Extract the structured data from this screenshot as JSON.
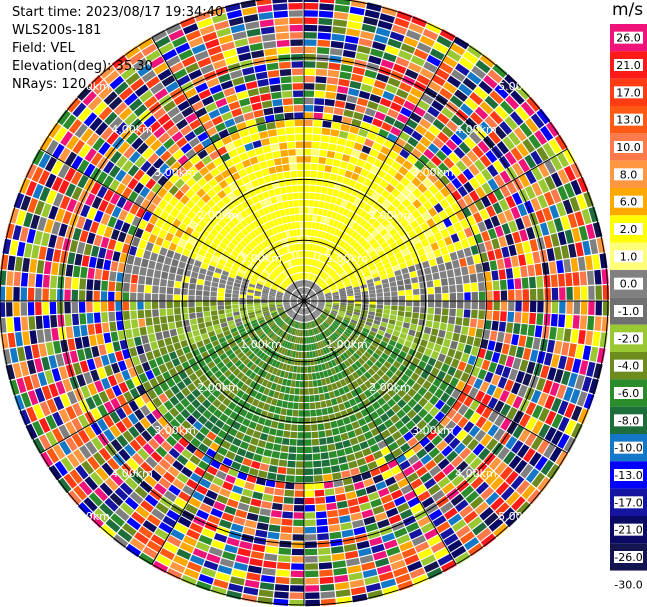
{
  "header": {
    "start_time": "Start time: 2023/08/17 19:34:40",
    "instrument": "WLS200s-181",
    "field": "Field: VEL",
    "elevation": "Elevation(deg): 35.30",
    "nrays": "NRays: 120"
  },
  "colorbar": {
    "unit": "m/s",
    "bins": [
      {
        "label": "26.0",
        "color": "#f0147a"
      },
      {
        "label": "21.0",
        "color": "#ff1a1a"
      },
      {
        "label": "17.0",
        "color": "#ff3c14"
      },
      {
        "label": "13.0",
        "color": "#ff5a14"
      },
      {
        "label": "10.0",
        "color": "#ff7a4a"
      },
      {
        "label": "8.0",
        "color": "#ff9640"
      },
      {
        "label": "6.0",
        "color": "#ffa800"
      },
      {
        "label": "2.0",
        "color": "#ffff00"
      },
      {
        "label": "1.0",
        "color": "#ffff7a"
      },
      {
        "label": "0.0",
        "color": "#808080"
      },
      {
        "label": "-1.0",
        "color": "#707070"
      },
      {
        "label": "-2.0",
        "color": "#9ac832"
      },
      {
        "label": "-4.0",
        "color": "#6e8c1e"
      },
      {
        "label": "-6.0",
        "color": "#2a8c2a"
      },
      {
        "label": "-8.0",
        "color": "#1e6e3c"
      },
      {
        "label": "-10.0",
        "color": "#1478c8"
      },
      {
        "label": "-13.0",
        "color": "#0000ff"
      },
      {
        "label": "-17.0",
        "color": "#1414a0"
      },
      {
        "label": "-21.0",
        "color": "#0a0a64"
      },
      {
        "label": "-26.0",
        "color": "#141450"
      },
      {
        "label": "-30.0",
        "color": "#ffffff"
      }
    ]
  },
  "chart_data": {
    "type": "heatmap",
    "projection": "polar PPI",
    "rings_km": [
      1.0,
      2.0,
      3.0,
      4.0,
      5.0
    ],
    "ring_labels": [
      "1.00km",
      "2.00km",
      "3.00km",
      "4.00km",
      "5.00km"
    ],
    "spokes_deg": [
      0,
      30,
      60,
      90,
      120,
      150,
      180,
      210,
      240,
      270,
      300,
      330
    ],
    "nrays": 120,
    "max_range_km": 5.0,
    "noise_start_km": 3.0,
    "sectors": {
      "north": {
        "dominant": "2.0",
        "note": "yellow, approaching 6.0/8.0 at outer edge"
      },
      "east_west": {
        "dominant": "0.0",
        "note": "gray band near zero velocity"
      },
      "south": {
        "dominant": "-4.0",
        "note": "olive/green negative velocities"
      }
    }
  }
}
